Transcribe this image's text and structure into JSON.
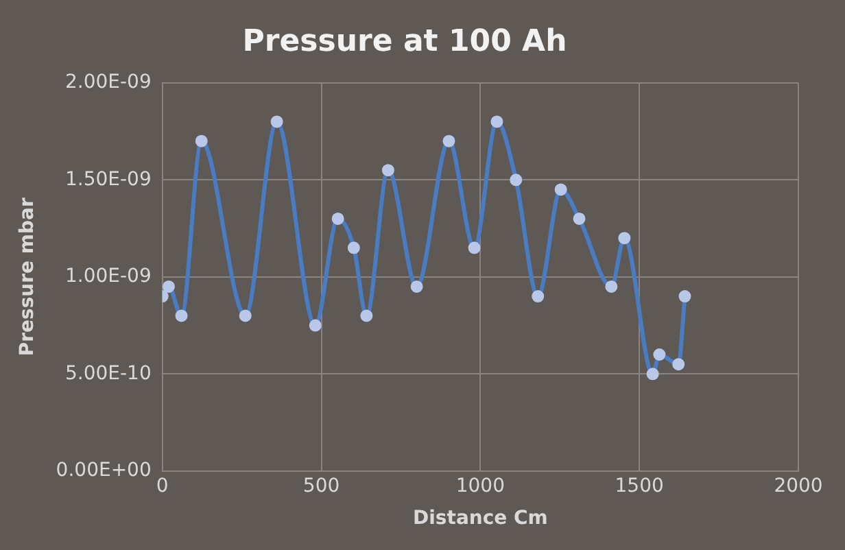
{
  "chart_data": {
    "type": "line",
    "title": "Pressure at 100 Ah",
    "xlabel": "Distance Cm",
    "ylabel": "Pressure mbar",
    "x": [
      0,
      20,
      60,
      123,
      261,
      360,
      481,
      552,
      602,
      642,
      710,
      800,
      901,
      981,
      1052,
      1112,
      1181,
      1253,
      1311,
      1412,
      1453,
      1542,
      1563,
      1623,
      1643
    ],
    "series": [
      {
        "color": "#4a7cc4",
        "values": [
          9e-10,
          9.5e-10,
          8e-10,
          1.7e-09,
          8e-10,
          1.8e-09,
          7.5e-10,
          1.3e-09,
          1.15e-09,
          8e-10,
          1.55e-09,
          9.5e-10,
          1.7e-09,
          1.15e-09,
          1.8e-09,
          1.5e-09,
          9e-10,
          1.45e-09,
          1.3e-09,
          9.5e-10,
          1.2e-09,
          5e-10,
          6e-10,
          5.5e-10,
          9e-10
        ]
      }
    ],
    "xlim": [
      0,
      2000
    ],
    "xticks": [
      0,
      500,
      1000,
      1500,
      2000
    ],
    "ylim": [
      0,
      2e-09
    ],
    "yticks": [
      {
        "value": 0,
        "label": "0.00E+00"
      },
      {
        "value": 5e-10,
        "label": "5.00E-10"
      },
      {
        "value": 1e-09,
        "label": "1.00E-09"
      },
      {
        "value": 1.5e-09,
        "label": "1.50E-09"
      },
      {
        "value": 2e-09,
        "label": "2.00E-09"
      }
    ],
    "grid": true,
    "marker": "circle",
    "line_style": "solid",
    "legend": false
  }
}
